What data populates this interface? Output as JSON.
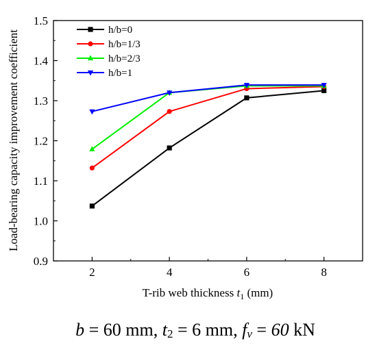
{
  "chart_data": {
    "type": "line",
    "x": [
      2,
      4,
      6,
      8
    ],
    "x_ticks": [
      "2",
      "4",
      "6",
      "8"
    ],
    "y_ticks": [
      "0.9",
      "1.0",
      "1.1",
      "1.2",
      "1.3",
      "1.4",
      "1.5"
    ],
    "xlim": [
      1,
      9
    ],
    "ylim": [
      0.9,
      1.5
    ],
    "xlabel": {
      "main": "T-rib web thickness ",
      "symbol": "t",
      "subscript": "1",
      "unit": " (mm)"
    },
    "ylabel": "Load-bearing capacity improvement coefficient",
    "grid": false,
    "legend_position": "top-left",
    "series": [
      {
        "name": "h/b=0",
        "values": [
          1.037,
          1.182,
          1.307,
          1.325
        ],
        "color": "#000000",
        "marker": "square"
      },
      {
        "name": "h/b=1/3",
        "values": [
          1.132,
          1.273,
          1.33,
          1.335
        ],
        "color": "#ff0000",
        "marker": "circle"
      },
      {
        "name": "h/b=2/3",
        "values": [
          1.179,
          1.32,
          1.337,
          1.337
        ],
        "color": "#00ee00",
        "marker": "triangle-up"
      },
      {
        "name": "h/b=1",
        "values": [
          1.273,
          1.32,
          1.339,
          1.339
        ],
        "color": "#0000ff",
        "marker": "triangle-down"
      }
    ]
  },
  "caption": {
    "b_symbol": "b",
    "b_value": " = 60 mm, ",
    "t_symbol": "t",
    "t_subscript": "2",
    "t_value": " = 6 mm, ",
    "f_symbol": "f",
    "f_subscript": "v",
    "f_value_eq": " = ",
    "f_value_num": "60",
    "f_value_unit": " kN"
  }
}
